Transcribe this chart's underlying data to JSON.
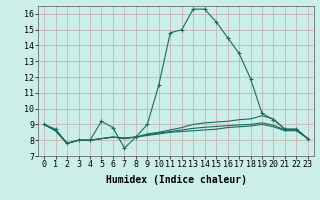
{
  "bg_color": "#cceee8",
  "grid_color": "#c8a8a8",
  "line_color": "#1a6b5e",
  "line1_x": [
    0,
    1,
    2,
    3,
    4,
    5,
    6,
    7,
    8,
    9,
    10,
    11,
    12,
    13,
    14,
    15,
    16,
    17,
    18,
    19,
    20,
    21,
    22,
    23
  ],
  "line1_y": [
    9.0,
    8.7,
    7.8,
    8.0,
    8.0,
    9.2,
    8.8,
    7.5,
    8.2,
    9.0,
    11.5,
    14.8,
    15.0,
    16.3,
    16.3,
    15.5,
    14.5,
    13.5,
    11.9,
    9.7,
    9.3,
    8.7,
    8.7,
    8.1
  ],
  "line2_x": [
    0,
    1,
    2,
    3,
    4,
    5,
    6,
    7,
    8,
    9,
    10,
    11,
    12,
    13,
    14,
    15,
    16,
    17,
    18,
    19,
    20,
    21,
    22,
    23
  ],
  "line2_y": [
    9.0,
    8.6,
    7.8,
    8.0,
    8.0,
    8.1,
    8.2,
    8.15,
    8.2,
    8.3,
    8.4,
    8.5,
    8.55,
    8.6,
    8.65,
    8.7,
    8.8,
    8.85,
    8.9,
    9.0,
    8.85,
    8.6,
    8.6,
    8.1
  ],
  "line3_x": [
    0,
    1,
    2,
    3,
    4,
    5,
    6,
    7,
    8,
    9,
    10,
    11,
    12,
    13,
    14,
    15,
    16,
    17,
    18,
    19,
    20,
    21,
    22,
    23
  ],
  "line3_y": [
    9.0,
    8.6,
    7.8,
    8.0,
    8.0,
    8.1,
    8.2,
    8.1,
    8.2,
    8.4,
    8.5,
    8.65,
    8.8,
    9.0,
    9.1,
    9.15,
    9.2,
    9.3,
    9.35,
    9.55,
    9.35,
    8.7,
    8.7,
    8.1
  ],
  "line4_x": [
    0,
    1,
    2,
    3,
    4,
    5,
    6,
    7,
    8,
    9,
    10,
    11,
    12,
    13,
    14,
    15,
    16,
    17,
    18,
    19,
    20,
    21,
    22,
    23
  ],
  "line4_y": [
    9.0,
    8.6,
    7.8,
    8.0,
    8.0,
    8.1,
    8.2,
    8.1,
    8.2,
    8.35,
    8.45,
    8.55,
    8.65,
    8.75,
    8.82,
    8.87,
    8.92,
    8.97,
    9.0,
    9.1,
    8.95,
    8.65,
    8.65,
    8.1
  ],
  "xlim": [
    -0.5,
    23.5
  ],
  "ylim": [
    7.0,
    16.5
  ],
  "yticks": [
    7,
    8,
    9,
    10,
    11,
    12,
    13,
    14,
    15,
    16
  ],
  "xticks": [
    0,
    1,
    2,
    3,
    4,
    5,
    6,
    7,
    8,
    9,
    10,
    11,
    12,
    13,
    14,
    15,
    16,
    17,
    18,
    19,
    20,
    21,
    22,
    23
  ],
  "xlabel": "Humidex (Indice chaleur)",
  "xlabel_fontsize": 7,
  "tick_fontsize": 6
}
